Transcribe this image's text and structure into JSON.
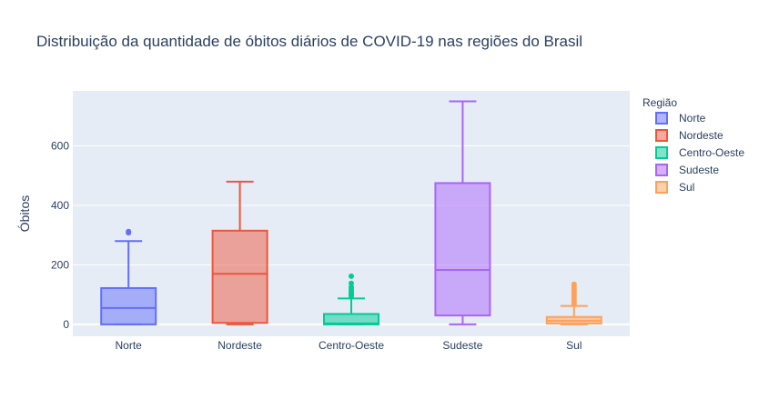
{
  "chart_data": {
    "type": "box",
    "title": "Distribuição da quantidade de óbitos diários de COVID-19 nas regiões do Brasil",
    "xlabel": "",
    "ylabel": "Óbitos",
    "ylim": [
      -40,
      785
    ],
    "yticks": [
      0,
      200,
      400,
      600
    ],
    "grid": true,
    "legend_title": "Região",
    "legend_position": "right",
    "categories": [
      "Norte",
      "Nordeste",
      "Centro-Oeste",
      "Sudeste",
      "Sul"
    ],
    "series": [
      {
        "name": "Norte",
        "color": "#636efa",
        "min": 0,
        "q1": 0,
        "median": 55,
        "q3": 122,
        "max": 280,
        "outliers": [
          308,
          312
        ]
      },
      {
        "name": "Nordeste",
        "color": "#ef553b",
        "min": 0,
        "q1": 5,
        "median": 170,
        "q3": 315,
        "max": 480,
        "outliers": []
      },
      {
        "name": "Centro-Oeste",
        "color": "#00cc96",
        "min": 0,
        "q1": 0,
        "median": 3,
        "q3": 35,
        "max": 87,
        "outliers": [
          95,
          100,
          105,
          110,
          118,
          125,
          138,
          162
        ]
      },
      {
        "name": "Sudeste",
        "color": "#ab63fa",
        "min": 0,
        "q1": 30,
        "median": 183,
        "q3": 475,
        "max": 750,
        "outliers": []
      },
      {
        "name": "Sul",
        "color": "#ffa15a",
        "min": 0,
        "q1": 3,
        "median": 12,
        "q3": 25,
        "max": 62,
        "outliers": [
          68,
          75,
          82,
          90,
          98,
          105,
          112,
          120,
          128,
          135
        ]
      }
    ]
  }
}
